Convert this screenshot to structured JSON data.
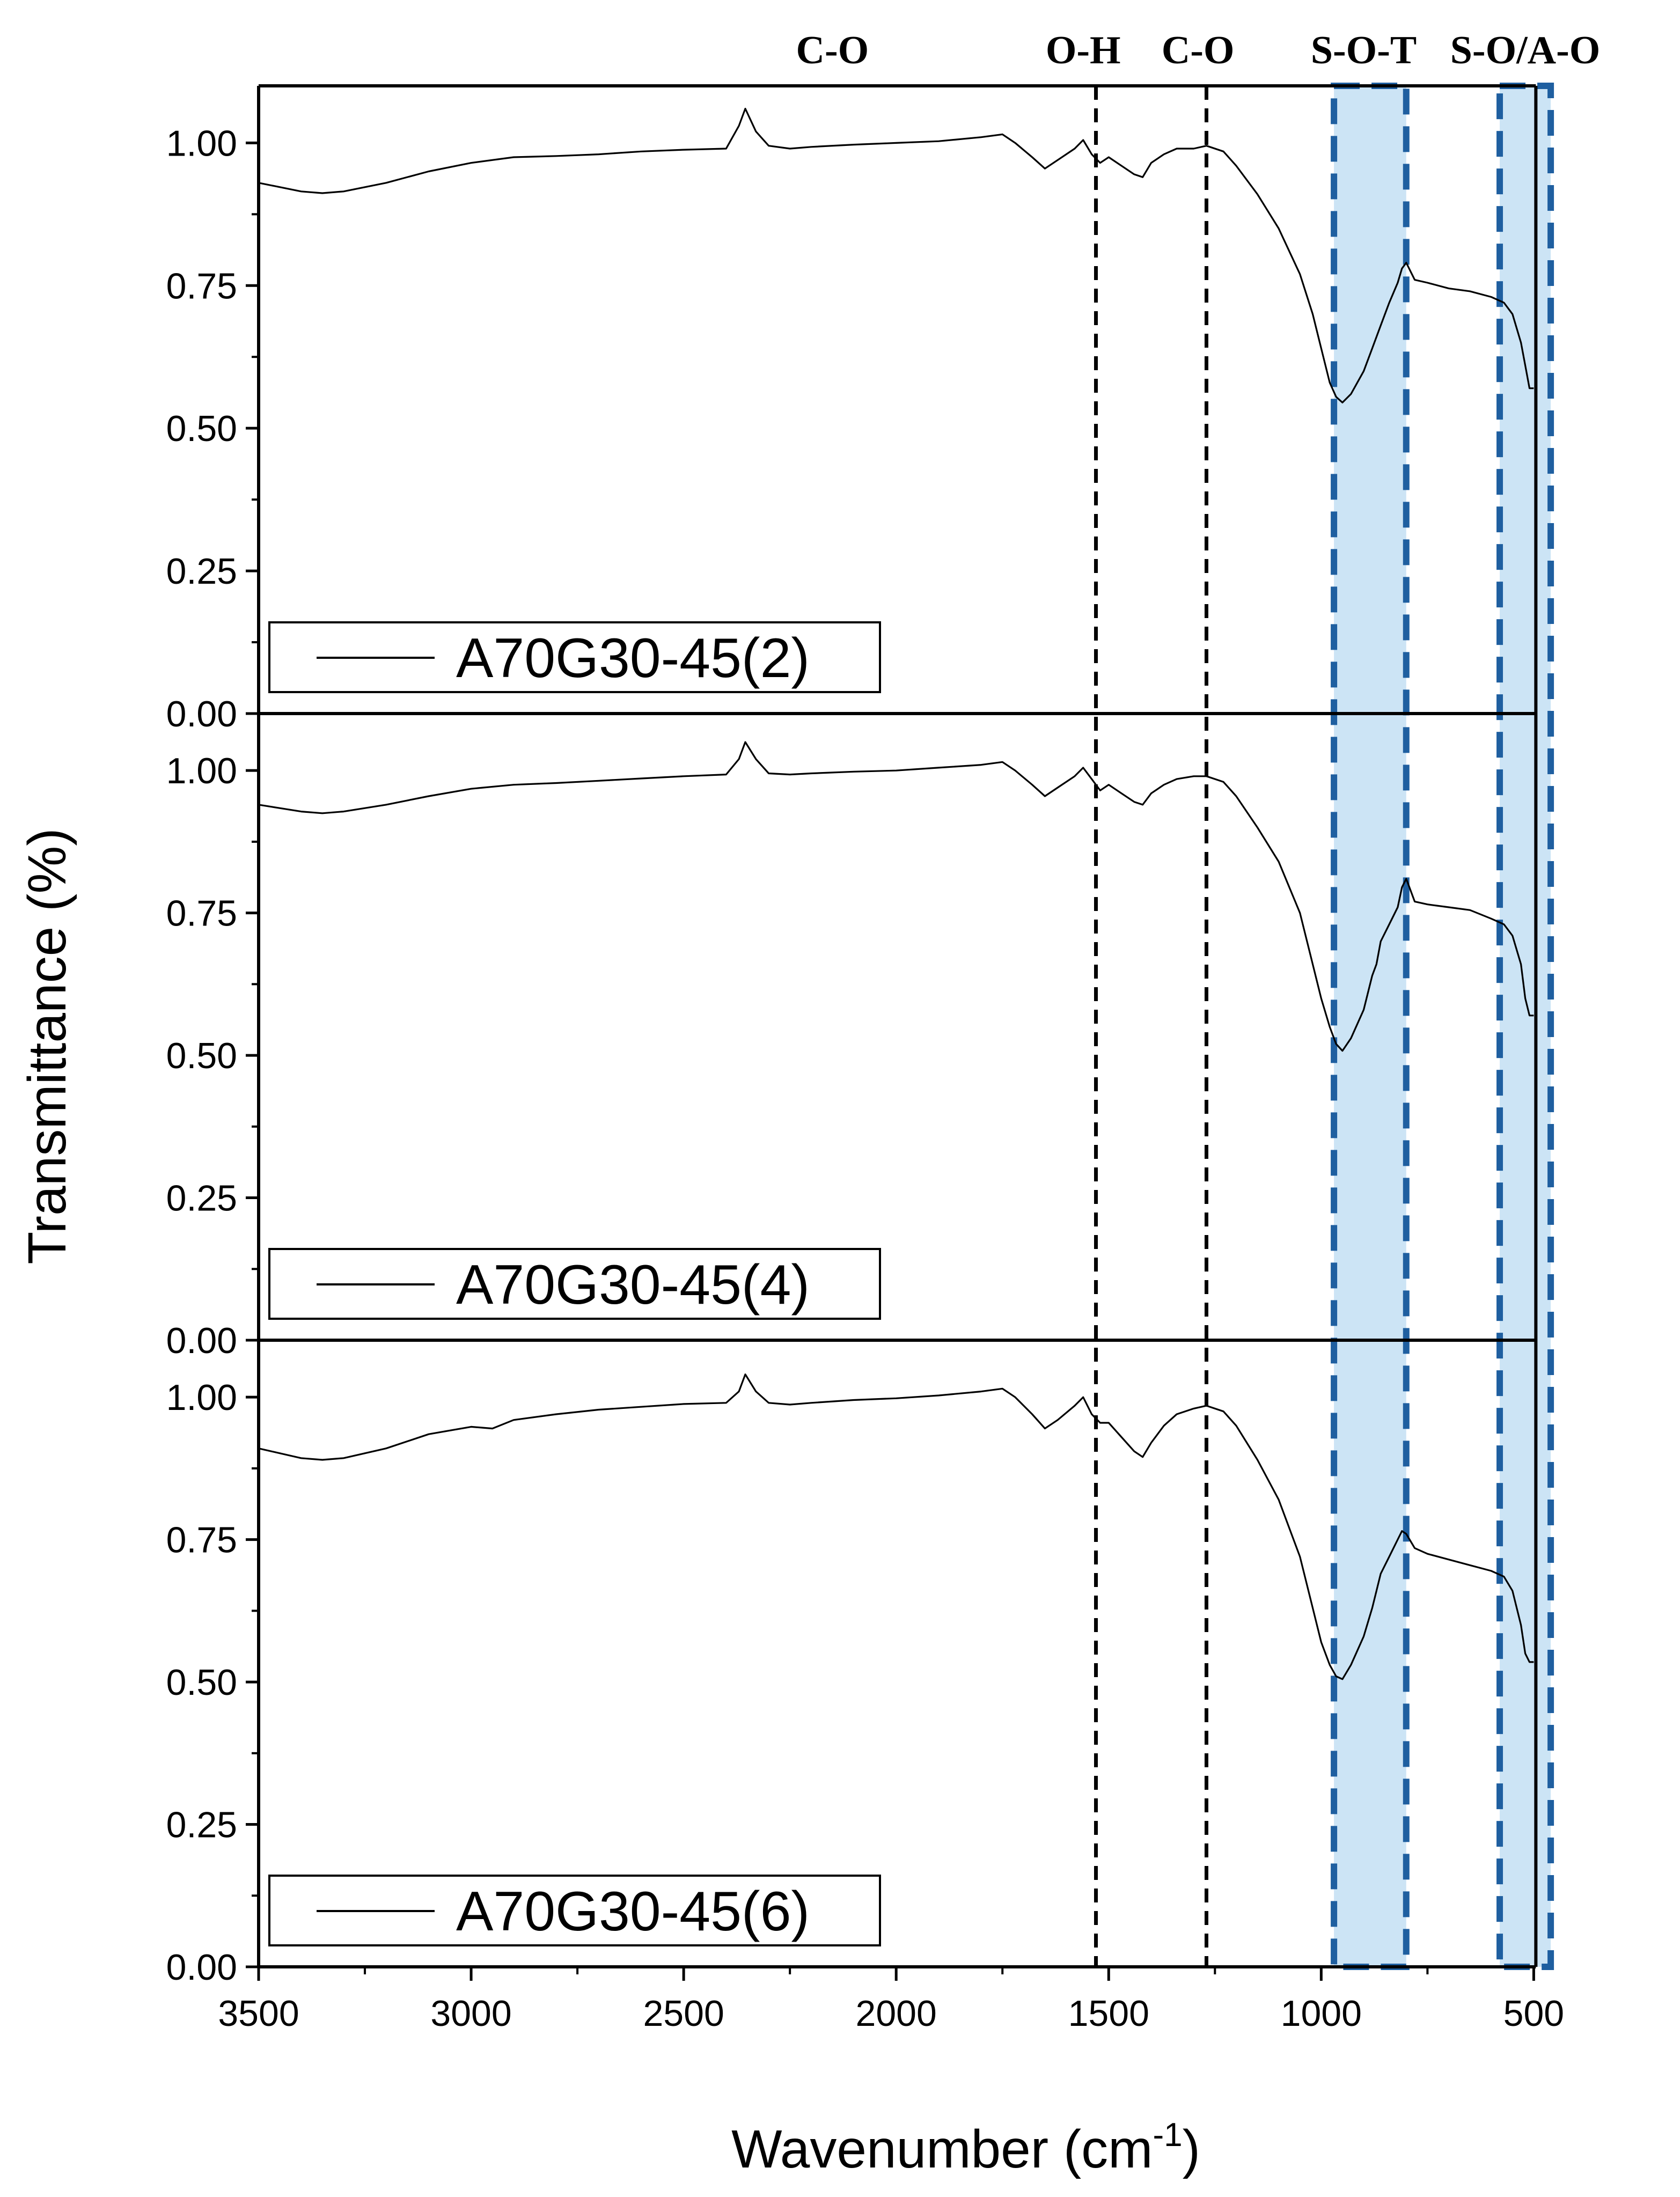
{
  "chart_data": {
    "type": "line",
    "xlabel": "Wavenumber (cm",
    "xlabel_sup": "-1",
    "xlabel_close": ")",
    "ylabel": "Transmittance (%)",
    "xlim": [
      3500,
      450
    ],
    "x_reversed": true,
    "ylim": [
      0,
      1.1
    ],
    "x_ticks": [
      3500,
      3000,
      2500,
      2000,
      1500,
      1000,
      500
    ],
    "x_tick_labels": [
      "3500",
      "3000",
      "2500",
      "2000",
      "1500",
      "1000",
      "500"
    ],
    "y_ticks": [
      0,
      0.25,
      0.5,
      0.75,
      1.0
    ],
    "y_tick_labels": [
      "0.00",
      "0.25",
      "0.50",
      "0.75",
      "1.00"
    ],
    "grid": false,
    "legend_position": "bottom-left",
    "colors": {
      "line": "#000000",
      "band_fill": "#cce4f5",
      "band_border": "#1f5fa0"
    },
    "band_labels": [
      {
        "text": "C-O",
        "x": 2150
      },
      {
        "text": "O-H",
        "x": 1560
      },
      {
        "text": "C-O",
        "x": 1290
      },
      {
        "text": "S-O-T",
        "x": 900
      },
      {
        "text": "S-O/A-O",
        "x": 520
      }
    ],
    "vertical_lines": [
      1530,
      1270
    ],
    "shaded_bands": [
      {
        "from": 970,
        "to": 800
      },
      {
        "from": 580,
        "to": 460
      }
    ],
    "solid_vertical_line": 495,
    "panels": [
      {
        "legend": "A70G30-45(2)",
        "series": [
          {
            "name": "A70G30-45(2)",
            "x": [
              3500,
              3400,
              3350,
              3300,
              3200,
              3100,
              3000,
              2900,
              2800,
              2700,
              2600,
              2500,
              2400,
              2370,
              2355,
              2330,
              2300,
              2250,
              2200,
              2100,
              2000,
              1900,
              1800,
              1750,
              1720,
              1680,
              1650,
              1620,
              1580,
              1560,
              1540,
              1520,
              1500,
              1470,
              1440,
              1420,
              1400,
              1370,
              1340,
              1300,
              1270,
              1230,
              1200,
              1150,
              1100,
              1050,
              1020,
              1000,
              980,
              965,
              950,
              930,
              900,
              880,
              860,
              840,
              820,
              810,
              800,
              780,
              750,
              700,
              650,
              600,
              570,
              550,
              530,
              520,
              510,
              500
            ],
            "y": [
              0.93,
              0.915,
              0.912,
              0.915,
              0.93,
              0.95,
              0.965,
              0.975,
              0.977,
              0.98,
              0.985,
              0.988,
              0.99,
              1.03,
              1.06,
              1.02,
              0.995,
              0.99,
              0.993,
              0.997,
              1.0,
              1.003,
              1.01,
              1.015,
              1.0,
              0.975,
              0.955,
              0.97,
              0.99,
              1.005,
              0.98,
              0.965,
              0.975,
              0.96,
              0.945,
              0.94,
              0.965,
              0.98,
              0.99,
              0.99,
              0.995,
              0.985,
              0.96,
              0.91,
              0.85,
              0.77,
              0.7,
              0.64,
              0.58,
              0.555,
              0.545,
              0.56,
              0.6,
              0.64,
              0.68,
              0.72,
              0.755,
              0.78,
              0.79,
              0.76,
              0.755,
              0.745,
              0.74,
              0.73,
              0.72,
              0.7,
              0.65,
              0.61,
              0.57,
              0.57
            ]
          }
        ]
      },
      {
        "legend": "A70G30-45(4)",
        "series": [
          {
            "name": "A70G30-45(4)",
            "x": [
              3500,
              3400,
              3350,
              3300,
              3200,
              3100,
              3000,
              2900,
              2800,
              2700,
              2600,
              2500,
              2400,
              2370,
              2355,
              2330,
              2300,
              2250,
              2200,
              2100,
              2000,
              1900,
              1800,
              1750,
              1720,
              1680,
              1650,
              1620,
              1580,
              1560,
              1540,
              1520,
              1500,
              1470,
              1440,
              1420,
              1400,
              1370,
              1340,
              1300,
              1270,
              1230,
              1200,
              1150,
              1100,
              1050,
              1020,
              1000,
              980,
              965,
              950,
              930,
              900,
              880,
              870,
              860,
              840,
              820,
              810,
              800,
              780,
              750,
              700,
              650,
              600,
              570,
              550,
              530,
              520,
              510,
              500
            ],
            "y": [
              0.94,
              0.928,
              0.925,
              0.928,
              0.94,
              0.955,
              0.968,
              0.975,
              0.978,
              0.982,
              0.986,
              0.99,
              0.993,
              1.02,
              1.05,
              1.02,
              0.995,
              0.993,
              0.995,
              0.998,
              1.0,
              1.005,
              1.01,
              1.015,
              1.0,
              0.975,
              0.955,
              0.97,
              0.99,
              1.005,
              0.985,
              0.965,
              0.975,
              0.96,
              0.945,
              0.94,
              0.96,
              0.975,
              0.985,
              0.99,
              0.99,
              0.98,
              0.955,
              0.9,
              0.84,
              0.75,
              0.66,
              0.6,
              0.55,
              0.52,
              0.508,
              0.53,
              0.58,
              0.64,
              0.66,
              0.7,
              0.73,
              0.76,
              0.795,
              0.81,
              0.77,
              0.765,
              0.76,
              0.755,
              0.74,
              0.73,
              0.71,
              0.66,
              0.6,
              0.57,
              0.57
            ]
          }
        ]
      },
      {
        "legend": "A70G30-45(6)",
        "series": [
          {
            "name": "A70G30-45(6)",
            "x": [
              3500,
              3400,
              3350,
              3300,
              3200,
              3100,
              3000,
              2950,
              2900,
              2800,
              2700,
              2600,
              2500,
              2400,
              2370,
              2355,
              2330,
              2300,
              2250,
              2200,
              2100,
              2000,
              1900,
              1800,
              1750,
              1720,
              1680,
              1650,
              1620,
              1580,
              1560,
              1540,
              1520,
              1500,
              1470,
              1440,
              1420,
              1400,
              1370,
              1340,
              1300,
              1270,
              1230,
              1200,
              1150,
              1100,
              1050,
              1020,
              1000,
              980,
              965,
              950,
              930,
              900,
              880,
              870,
              860,
              840,
              820,
              810,
              800,
              780,
              750,
              700,
              650,
              600,
              570,
              550,
              530,
              520,
              510,
              500
            ],
            "y": [
              0.91,
              0.893,
              0.89,
              0.893,
              0.91,
              0.935,
              0.948,
              0.945,
              0.96,
              0.97,
              0.978,
              0.983,
              0.988,
              0.99,
              1.01,
              1.04,
              1.01,
              0.99,
              0.987,
              0.99,
              0.995,
              0.998,
              1.003,
              1.01,
              1.015,
              1.0,
              0.97,
              0.945,
              0.96,
              0.985,
              1.0,
              0.97,
              0.955,
              0.955,
              0.93,
              0.905,
              0.895,
              0.92,
              0.95,
              0.97,
              0.98,
              0.985,
              0.975,
              0.95,
              0.89,
              0.82,
              0.72,
              0.63,
              0.57,
              0.53,
              0.51,
              0.505,
              0.53,
              0.58,
              0.63,
              0.66,
              0.69,
              0.72,
              0.75,
              0.765,
              0.76,
              0.735,
              0.725,
              0.715,
              0.705,
              0.695,
              0.685,
              0.66,
              0.6,
              0.55,
              0.535,
              0.535
            ]
          }
        ]
      }
    ]
  }
}
